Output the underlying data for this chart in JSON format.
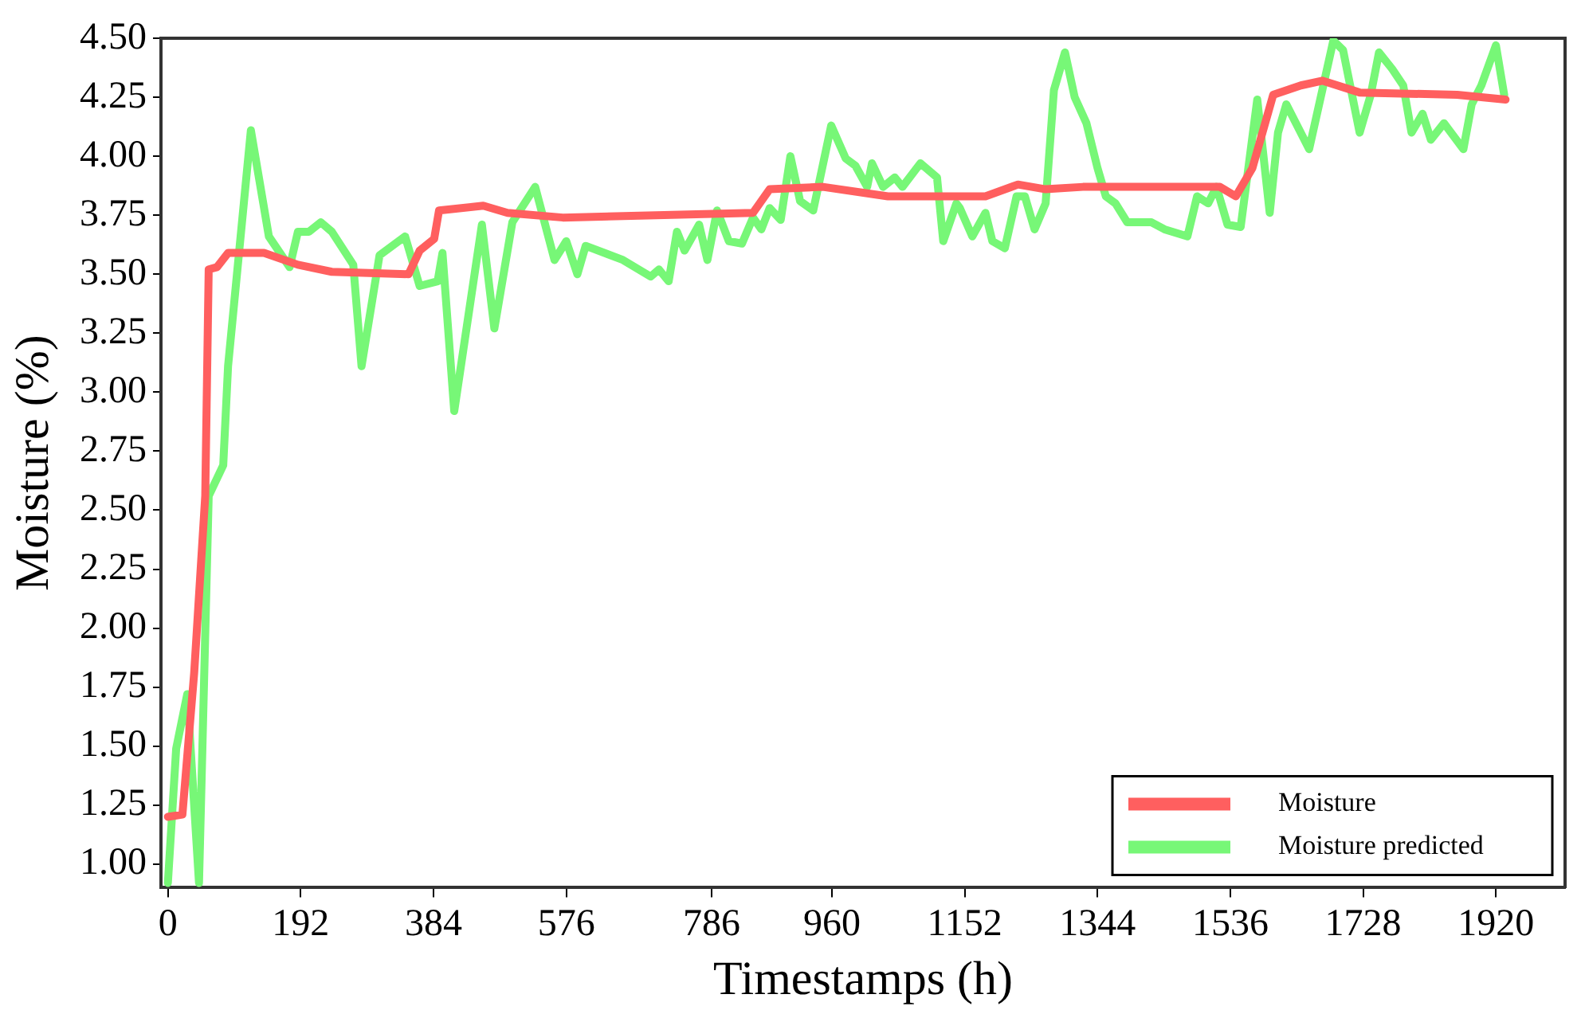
{
  "chart_data": {
    "type": "line",
    "xlabel": "Timestamps (h)",
    "ylabel": "Moisture (%)",
    "xlim": [
      -10,
      2020
    ],
    "xticks": [
      0,
      192,
      384,
      576,
      786,
      960,
      1152,
      1344,
      1536,
      1728,
      1920
    ],
    "ylim": [
      0.9,
      4.5
    ],
    "yticks": [
      {
        "value": 1,
        "label": "1.00"
      },
      {
        "value": 1.25,
        "label": "1.25"
      },
      {
        "value": 1.5,
        "label": "1.50"
      },
      {
        "value": 1.75,
        "label": "1.75"
      },
      {
        "value": 2,
        "label": "2.00"
      },
      {
        "value": 2.25,
        "label": "2.25"
      },
      {
        "value": 2.5,
        "label": "2.50"
      },
      {
        "value": 2.75,
        "label": "2.75"
      },
      {
        "value": 3,
        "label": "3.00"
      },
      {
        "value": 3.25,
        "label": "3.25"
      },
      {
        "value": 3.5,
        "label": "3.50"
      },
      {
        "value": 3.75,
        "label": "3.75"
      },
      {
        "value": 4,
        "label": "4.00"
      },
      {
        "value": 4.25,
        "label": "4.25"
      },
      {
        "value": 4.5,
        "label": "4.50"
      }
    ],
    "grid": false,
    "legend": "bottom right",
    "marker": "none",
    "line_style": "solid",
    "series": [
      {
        "name": "Moisture",
        "color": "#ff5f5f",
        "x": [
          0,
          21,
          38,
          54,
          59,
          71,
          87,
          139,
          188,
          237,
          348,
          364,
          385,
          392,
          456,
          491,
          571,
          846,
          870,
          947,
          1041,
          1182,
          1229,
          1269,
          1323,
          1521,
          1544,
          1568,
          1598,
          1638,
          1669,
          1723,
          1864,
          1934
        ],
        "values": [
          1.2,
          1.21,
          1.81,
          2.56,
          3.52,
          3.53,
          3.59,
          3.59,
          3.54,
          3.51,
          3.5,
          3.6,
          3.65,
          3.77,
          3.79,
          3.76,
          3.74,
          3.76,
          3.86,
          3.87,
          3.83,
          3.83,
          3.88,
          3.86,
          3.87,
          3.87,
          3.83,
          3.95,
          4.26,
          4.3,
          4.32,
          4.27,
          4.26,
          4.24
        ]
      },
      {
        "name": "Moisture predicted",
        "color": "#77f777",
        "x": [
          0,
          12,
          28,
          45,
          59,
          80,
          87,
          120,
          146,
          176,
          188,
          204,
          221,
          237,
          268,
          280,
          306,
          343,
          364,
          390,
          397,
          414,
          454,
          472,
          498,
          531,
          559,
          576,
          592,
          604,
          658,
          698,
          710,
          724,
          736,
          747,
          768,
          780,
          794,
          811,
          830,
          846,
          858,
          870,
          886,
          900,
          914,
          933,
          959,
          980,
          994,
          1011,
          1018,
          1034,
          1051,
          1062,
          1088,
          1112,
          1121,
          1140,
          1145,
          1163,
          1182,
          1192,
          1210,
          1227,
          1239,
          1253,
          1269,
          1281,
          1297,
          1311,
          1328,
          1344,
          1356,
          1370,
          1387,
          1422,
          1441,
          1474,
          1488,
          1504,
          1516,
          1532,
          1551,
          1575,
          1593,
          1605,
          1617,
          1650,
          1685,
          1699,
          1723,
          1739,
          1751,
          1770,
          1786,
          1798,
          1814,
          1826,
          1845,
          1873,
          1885,
          1899,
          1920,
          1932
        ],
        "values": [
          0.92,
          1.49,
          1.72,
          0.92,
          2.56,
          2.69,
          3.11,
          4.11,
          3.66,
          3.53,
          3.68,
          3.68,
          3.72,
          3.68,
          3.54,
          3.11,
          3.58,
          3.66,
          3.45,
          3.47,
          3.59,
          2.92,
          3.71,
          3.27,
          3.72,
          3.87,
          3.56,
          3.64,
          3.5,
          3.62,
          3.56,
          3.49,
          3.52,
          3.47,
          3.68,
          3.6,
          3.71,
          3.56,
          3.77,
          3.64,
          3.63,
          3.74,
          3.69,
          3.78,
          3.73,
          4.0,
          3.81,
          3.77,
          4.13,
          3.99,
          3.96,
          3.87,
          3.97,
          3.87,
          3.91,
          3.87,
          3.97,
          3.91,
          3.64,
          3.8,
          3.78,
          3.66,
          3.76,
          3.64,
          3.61,
          3.83,
          3.83,
          3.69,
          3.8,
          4.28,
          4.44,
          4.25,
          4.14,
          3.95,
          3.83,
          3.8,
          3.72,
          3.72,
          3.69,
          3.66,
          3.83,
          3.8,
          3.87,
          3.71,
          3.7,
          4.24,
          3.76,
          4.1,
          4.22,
          4.03,
          4.49,
          4.45,
          4.1,
          4.26,
          4.44,
          4.37,
          4.3,
          4.1,
          4.18,
          4.07,
          4.14,
          4.03,
          4.22,
          4.3,
          4.47,
          4.26
        ]
      }
    ]
  }
}
